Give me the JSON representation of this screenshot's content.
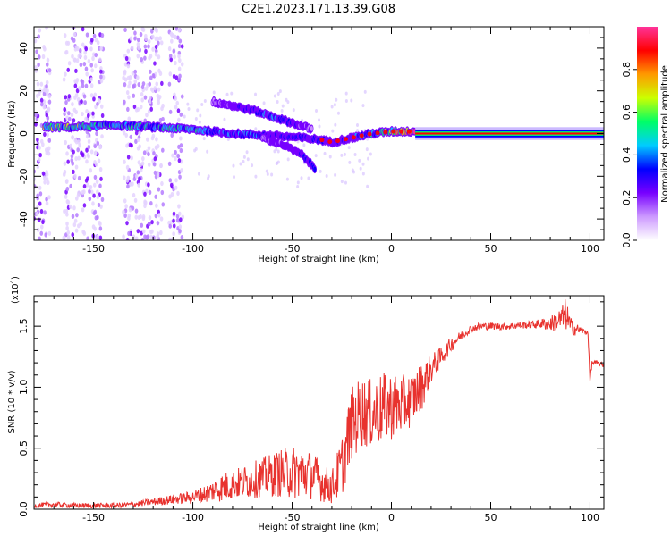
{
  "figure": {
    "title": "C2E1.2023.171.13.39.G08"
  },
  "chart_data": [
    {
      "type": "heatmap",
      "xlabel": "Height of straight line (km)",
      "ylabel": "Frequency (Hz)",
      "xlim": [
        -180,
        107
      ],
      "ylim": [
        -50,
        50
      ],
      "xticks": [
        -150,
        -100,
        -50,
        0,
        50,
        100
      ],
      "yticks": [
        -40,
        -20,
        0,
        20,
        40
      ],
      "colorbar": {
        "label": "Normalized spectral amplitude",
        "range": [
          0,
          1
        ],
        "ticks": [
          "0.0",
          "0.2",
          "0.4",
          "0.6",
          "0.8"
        ],
        "colors": [
          "#ffffff",
          "#cc99ff",
          "#7700ff",
          "#0000ff",
          "#00ccff",
          "#00ff66",
          "#ccff00",
          "#ff9900",
          "#ff0000",
          "#ff3399"
        ]
      },
      "features": [
        {
          "desc": "main signal band near 0 Hz",
          "x": [
            -175,
            -160,
            -140,
            -120,
            -100,
            -80,
            -60,
            -45,
            -35,
            -30,
            -20,
            -10,
            0,
            10,
            107
          ],
          "y": [
            3,
            3,
            4,
            3,
            2,
            0,
            -1,
            -2,
            -3,
            -4,
            -2,
            0,
            1,
            1,
            0
          ],
          "amp": [
            0.5,
            0.5,
            0.45,
            0.4,
            0.45,
            0.35,
            0.3,
            0.3,
            0.25,
            0.2,
            0.3,
            0.4,
            0.55,
            0.8,
            0.9
          ]
        },
        {
          "desc": "upper descending branch",
          "x": [
            -90,
            -80,
            -70,
            -60,
            -50,
            -40
          ],
          "y": [
            15,
            13,
            11,
            8,
            5,
            2
          ],
          "amp": [
            0.15,
            0.2,
            0.3,
            0.35,
            0.25,
            0.15
          ]
        },
        {
          "desc": "lower descending branch",
          "x": [
            -65,
            -55,
            -45,
            -38
          ],
          "y": [
            -2,
            -5,
            -10,
            -17
          ],
          "amp": [
            0.15,
            0.2,
            0.25,
            0.3
          ]
        }
      ],
      "noise_bands": [
        [
          -180,
          -172
        ],
        [
          -165,
          -145
        ],
        [
          -135,
          -115
        ],
        [
          -112,
          -105
        ]
      ]
    },
    {
      "type": "line",
      "xlabel": "Height of straight line (km)",
      "ylabel": "SNR (10 * v/v)",
      "yscale_label": "(x10",
      "yscale_exp": "4",
      "yscale_close": ")",
      "xlim": [
        -180,
        107
      ],
      "ylim": [
        0,
        1.75
      ],
      "xticks": [
        -150,
        -100,
        -50,
        0,
        50,
        100
      ],
      "yticks": [
        0.0,
        0.5,
        1.0,
        1.5
      ],
      "ytick_labels": [
        "0.0",
        "0.5",
        "1.0",
        "1.5"
      ],
      "color": "#e8322e",
      "series": [
        {
          "x": [
            -180,
            -170,
            -160,
            -150,
            -140,
            -130,
            -120,
            -110,
            -100,
            -95,
            -90,
            -85,
            -80,
            -75,
            -70,
            -65,
            -60,
            -55,
            -50,
            -45,
            -40,
            -35,
            -30,
            -25,
            -20,
            -15,
            -10,
            -5,
            0,
            5,
            10,
            15,
            20,
            25,
            30,
            35,
            40,
            45,
            50,
            55,
            60,
            65,
            70,
            75,
            80,
            85,
            88,
            90,
            92,
            95,
            98,
            99,
            100,
            101,
            103,
            107
          ],
          "y": [
            0.03,
            0.04,
            0.03,
            0.03,
            0.03,
            0.04,
            0.06,
            0.08,
            0.1,
            0.12,
            0.15,
            0.18,
            0.2,
            0.22,
            0.24,
            0.26,
            0.28,
            0.3,
            0.3,
            0.3,
            0.28,
            0.22,
            0.18,
            0.35,
            0.7,
            0.8,
            0.78,
            0.82,
            0.85,
            0.85,
            0.9,
            1.0,
            1.15,
            1.25,
            1.35,
            1.42,
            1.48,
            1.5,
            1.5,
            1.5,
            1.5,
            1.51,
            1.51,
            1.52,
            1.52,
            1.55,
            1.6,
            1.5,
            1.48,
            1.47,
            1.45,
            1.45,
            1.05,
            1.2,
            1.2,
            1.18
          ],
          "noise_amp": [
            0.02,
            0.02,
            0.02,
            0.02,
            0.02,
            0.02,
            0.03,
            0.04,
            0.05,
            0.07,
            0.09,
            0.12,
            0.12,
            0.14,
            0.15,
            0.16,
            0.18,
            0.2,
            0.22,
            0.22,
            0.2,
            0.16,
            0.14,
            0.25,
            0.3,
            0.3,
            0.28,
            0.3,
            0.28,
            0.25,
            0.22,
            0.2,
            0.12,
            0.08,
            0.06,
            0.04,
            0.03,
            0.03,
            0.03,
            0.03,
            0.03,
            0.03,
            0.03,
            0.04,
            0.06,
            0.1,
            0.14,
            0.08,
            0.06,
            0.03,
            0.02,
            0.02,
            0.02,
            0.02,
            0.02,
            0.02
          ]
        }
      ]
    }
  ]
}
